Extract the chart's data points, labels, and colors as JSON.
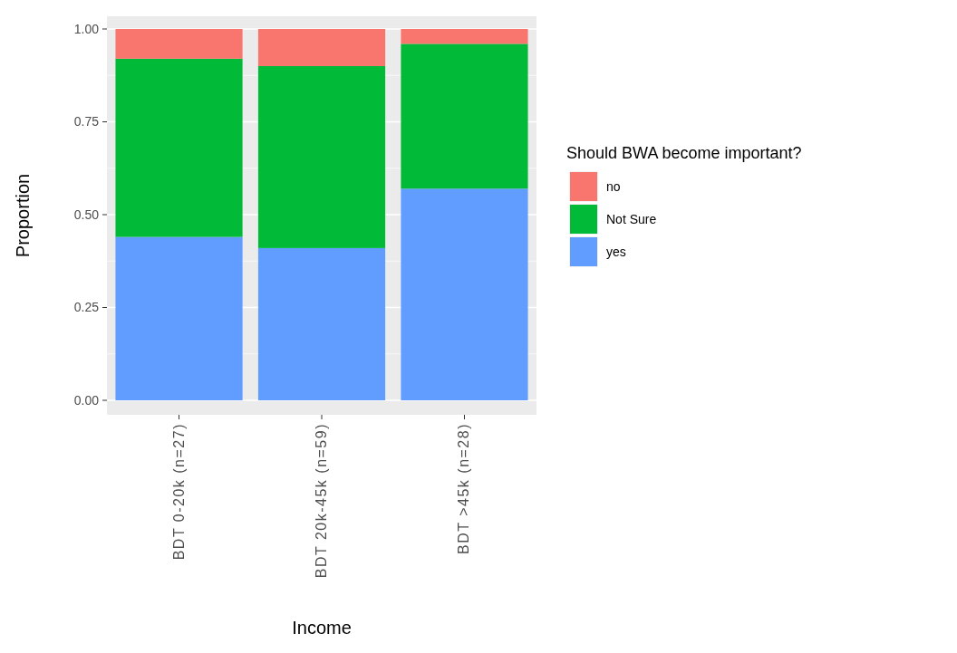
{
  "chart_data": {
    "type": "bar",
    "stacked": true,
    "xlabel": "Income",
    "ylabel": "Proportion",
    "legend_title": "Should BWA become important?",
    "legend": "right",
    "grid": "y",
    "categories": [
      "BDT 0-20k (n=27)",
      "BDT 20k-45k (n=59)",
      "BDT >45k (n=28)"
    ],
    "series": [
      {
        "name": "yes",
        "color": "#619cff",
        "values": [
          0.44,
          0.41,
          0.57
        ]
      },
      {
        "name": "Not Sure",
        "color": "#00ba38",
        "values": [
          0.48,
          0.49,
          0.39
        ]
      },
      {
        "name": "no",
        "color": "#f8766d",
        "values": [
          0.08,
          0.1,
          0.04
        ]
      }
    ],
    "ylim": [
      0,
      1
    ],
    "yticks": [
      {
        "value": 0,
        "label": "0.00"
      },
      {
        "value": 0.25,
        "label": "0.25"
      },
      {
        "value": 0.5,
        "label": "0.50"
      },
      {
        "value": 0.75,
        "label": "0.75"
      },
      {
        "value": 1,
        "label": "1.00"
      }
    ]
  }
}
